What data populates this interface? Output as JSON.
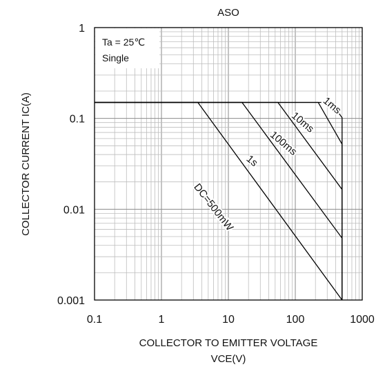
{
  "chart_data": {
    "type": "line",
    "title": "ASO",
    "xlabel_line1": "COLLECTOR TO EMITTER VOLTAGE",
    "xlabel_line2": "VCE(V)",
    "ylabel": "COLLECTOR CURRENT IC(A)",
    "x_scale": "log",
    "y_scale": "log",
    "xlim": [
      0.1,
      1000
    ],
    "ylim": [
      0.001,
      1
    ],
    "x_ticks": [
      {
        "value": 0.1,
        "label": "0.1"
      },
      {
        "value": 1,
        "label": "1"
      },
      {
        "value": 10,
        "label": "10"
      },
      {
        "value": 100,
        "label": "100"
      },
      {
        "value": 1000,
        "label": "1000"
      }
    ],
    "y_ticks": [
      {
        "value": 0.001,
        "label": "0.001"
      },
      {
        "value": 0.01,
        "label": "0.01"
      },
      {
        "value": 0.1,
        "label": "0.1"
      },
      {
        "value": 1,
        "label": "1"
      }
    ],
    "grid": true,
    "conditions": [
      "Ta = 25℃",
      "Single"
    ],
    "series": [
      {
        "name": "1ms",
        "points": [
          [
            0.1,
            0.15
          ],
          [
            340,
            0.15
          ],
          [
            500,
            0.102
          ],
          [
            500,
            0.001
          ]
        ]
      },
      {
        "name": "10ms",
        "points": [
          [
            0.1,
            0.15
          ],
          [
            220,
            0.15
          ],
          [
            500,
            0.052
          ],
          [
            500,
            0.001
          ]
        ]
      },
      {
        "name": "100ms",
        "points": [
          [
            0.1,
            0.15
          ],
          [
            55,
            0.15
          ],
          [
            500,
            0.0165
          ],
          [
            500,
            0.001
          ]
        ]
      },
      {
        "name": "1s",
        "points": [
          [
            0.1,
            0.15
          ],
          [
            16,
            0.15
          ],
          [
            500,
            0.0048
          ],
          [
            500,
            0.001
          ]
        ]
      },
      {
        "name": "DC=500mW",
        "points": [
          [
            0.1,
            0.15
          ],
          [
            3.5,
            0.15
          ],
          [
            500,
            0.001
          ]
        ]
      }
    ],
    "annotations": [
      {
        "text": "1ms",
        "x": 330,
        "y": 0.13,
        "angle": 40
      },
      {
        "text": "10ms",
        "x": 120,
        "y": 0.085,
        "angle": 40
      },
      {
        "text": "100ms",
        "x": 62,
        "y": 0.05,
        "angle": 40
      },
      {
        "text": "1s",
        "x": 21,
        "y": 0.032,
        "angle": 40
      },
      {
        "text": "DC=500mW",
        "x": 5.5,
        "y": 0.01,
        "angle": 52
      }
    ]
  }
}
